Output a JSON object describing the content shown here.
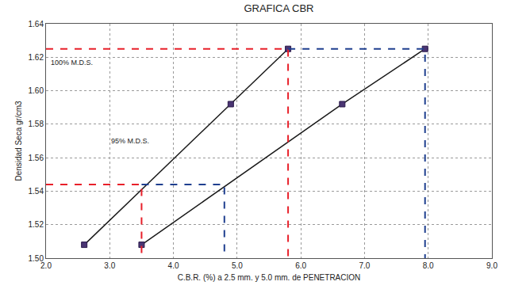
{
  "chart_data": {
    "type": "line",
    "title": "GRAFICA CBR",
    "x_label": "C.B.R. (%) a 2.5 mm. y 5.0 mm. de PENETRACION",
    "y_label": "Densidad Seca gr/cm3",
    "xlim": [
      2.0,
      9.0
    ],
    "xticks": [
      {
        "value": 2,
        "label": "2.0"
      },
      {
        "value": 3,
        "label": "3.0"
      },
      {
        "value": 4,
        "label": "4.0"
      },
      {
        "value": 5,
        "label": "5.0"
      },
      {
        "value": 6,
        "label": "6.0"
      },
      {
        "value": 7,
        "label": "7.0"
      },
      {
        "value": 8,
        "label": "8.0"
      },
      {
        "value": 9,
        "label": "9.0"
      }
    ],
    "ylim": [
      1.5,
      1.64
    ],
    "yticks": [
      {
        "value": 1.5,
        "label": "1.50"
      },
      {
        "value": 1.52,
        "label": "1.52"
      },
      {
        "value": 1.54,
        "label": "1.54"
      },
      {
        "value": 1.56,
        "label": "1.56"
      },
      {
        "value": 1.58,
        "label": "1.58"
      },
      {
        "value": 1.6,
        "label": "1.60"
      },
      {
        "value": 1.62,
        "label": "1.62"
      },
      {
        "value": 1.64,
        "label": "1.64"
      }
    ],
    "grid": true,
    "series": [
      {
        "x": [
          2.6,
          4.9,
          5.8
        ],
        "values": [
          1.508,
          1.592,
          1.625
        ],
        "color": "#1a1a1a",
        "marker": "square",
        "line_style": "solid"
      },
      {
        "x": [
          3.5,
          6.65,
          7.95
        ],
        "values": [
          1.508,
          1.592,
          1.625
        ],
        "color": "#1a1a1a",
        "marker": "square",
        "line_style": "solid"
      },
      {
        "x": [
          2.0,
          5.8,
          5.8
        ],
        "values": [
          1.625,
          1.625,
          1.5
        ],
        "color": "#e8202a",
        "line_style": "dashed"
      },
      {
        "x": [
          5.8,
          7.95,
          7.95
        ],
        "values": [
          1.625,
          1.625,
          1.5
        ],
        "color": "#1f3f8f",
        "line_style": "dashed"
      },
      {
        "x": [
          2.0,
          3.5,
          3.5
        ],
        "values": [
          1.544,
          1.544,
          1.5
        ],
        "color": "#e8202a",
        "line_style": "dashed"
      },
      {
        "x": [
          3.5,
          4.8,
          4.8
        ],
        "values": [
          1.544,
          1.544,
          1.5
        ],
        "color": "#1f3f8f",
        "line_style": "dashed"
      }
    ],
    "annotations": [
      {
        "text": "100% M.D.S.",
        "x": 2.05,
        "y": 1.617
      },
      {
        "text": "95% M.D.S.",
        "x": 3.0,
        "y": 1.57
      }
    ]
  }
}
